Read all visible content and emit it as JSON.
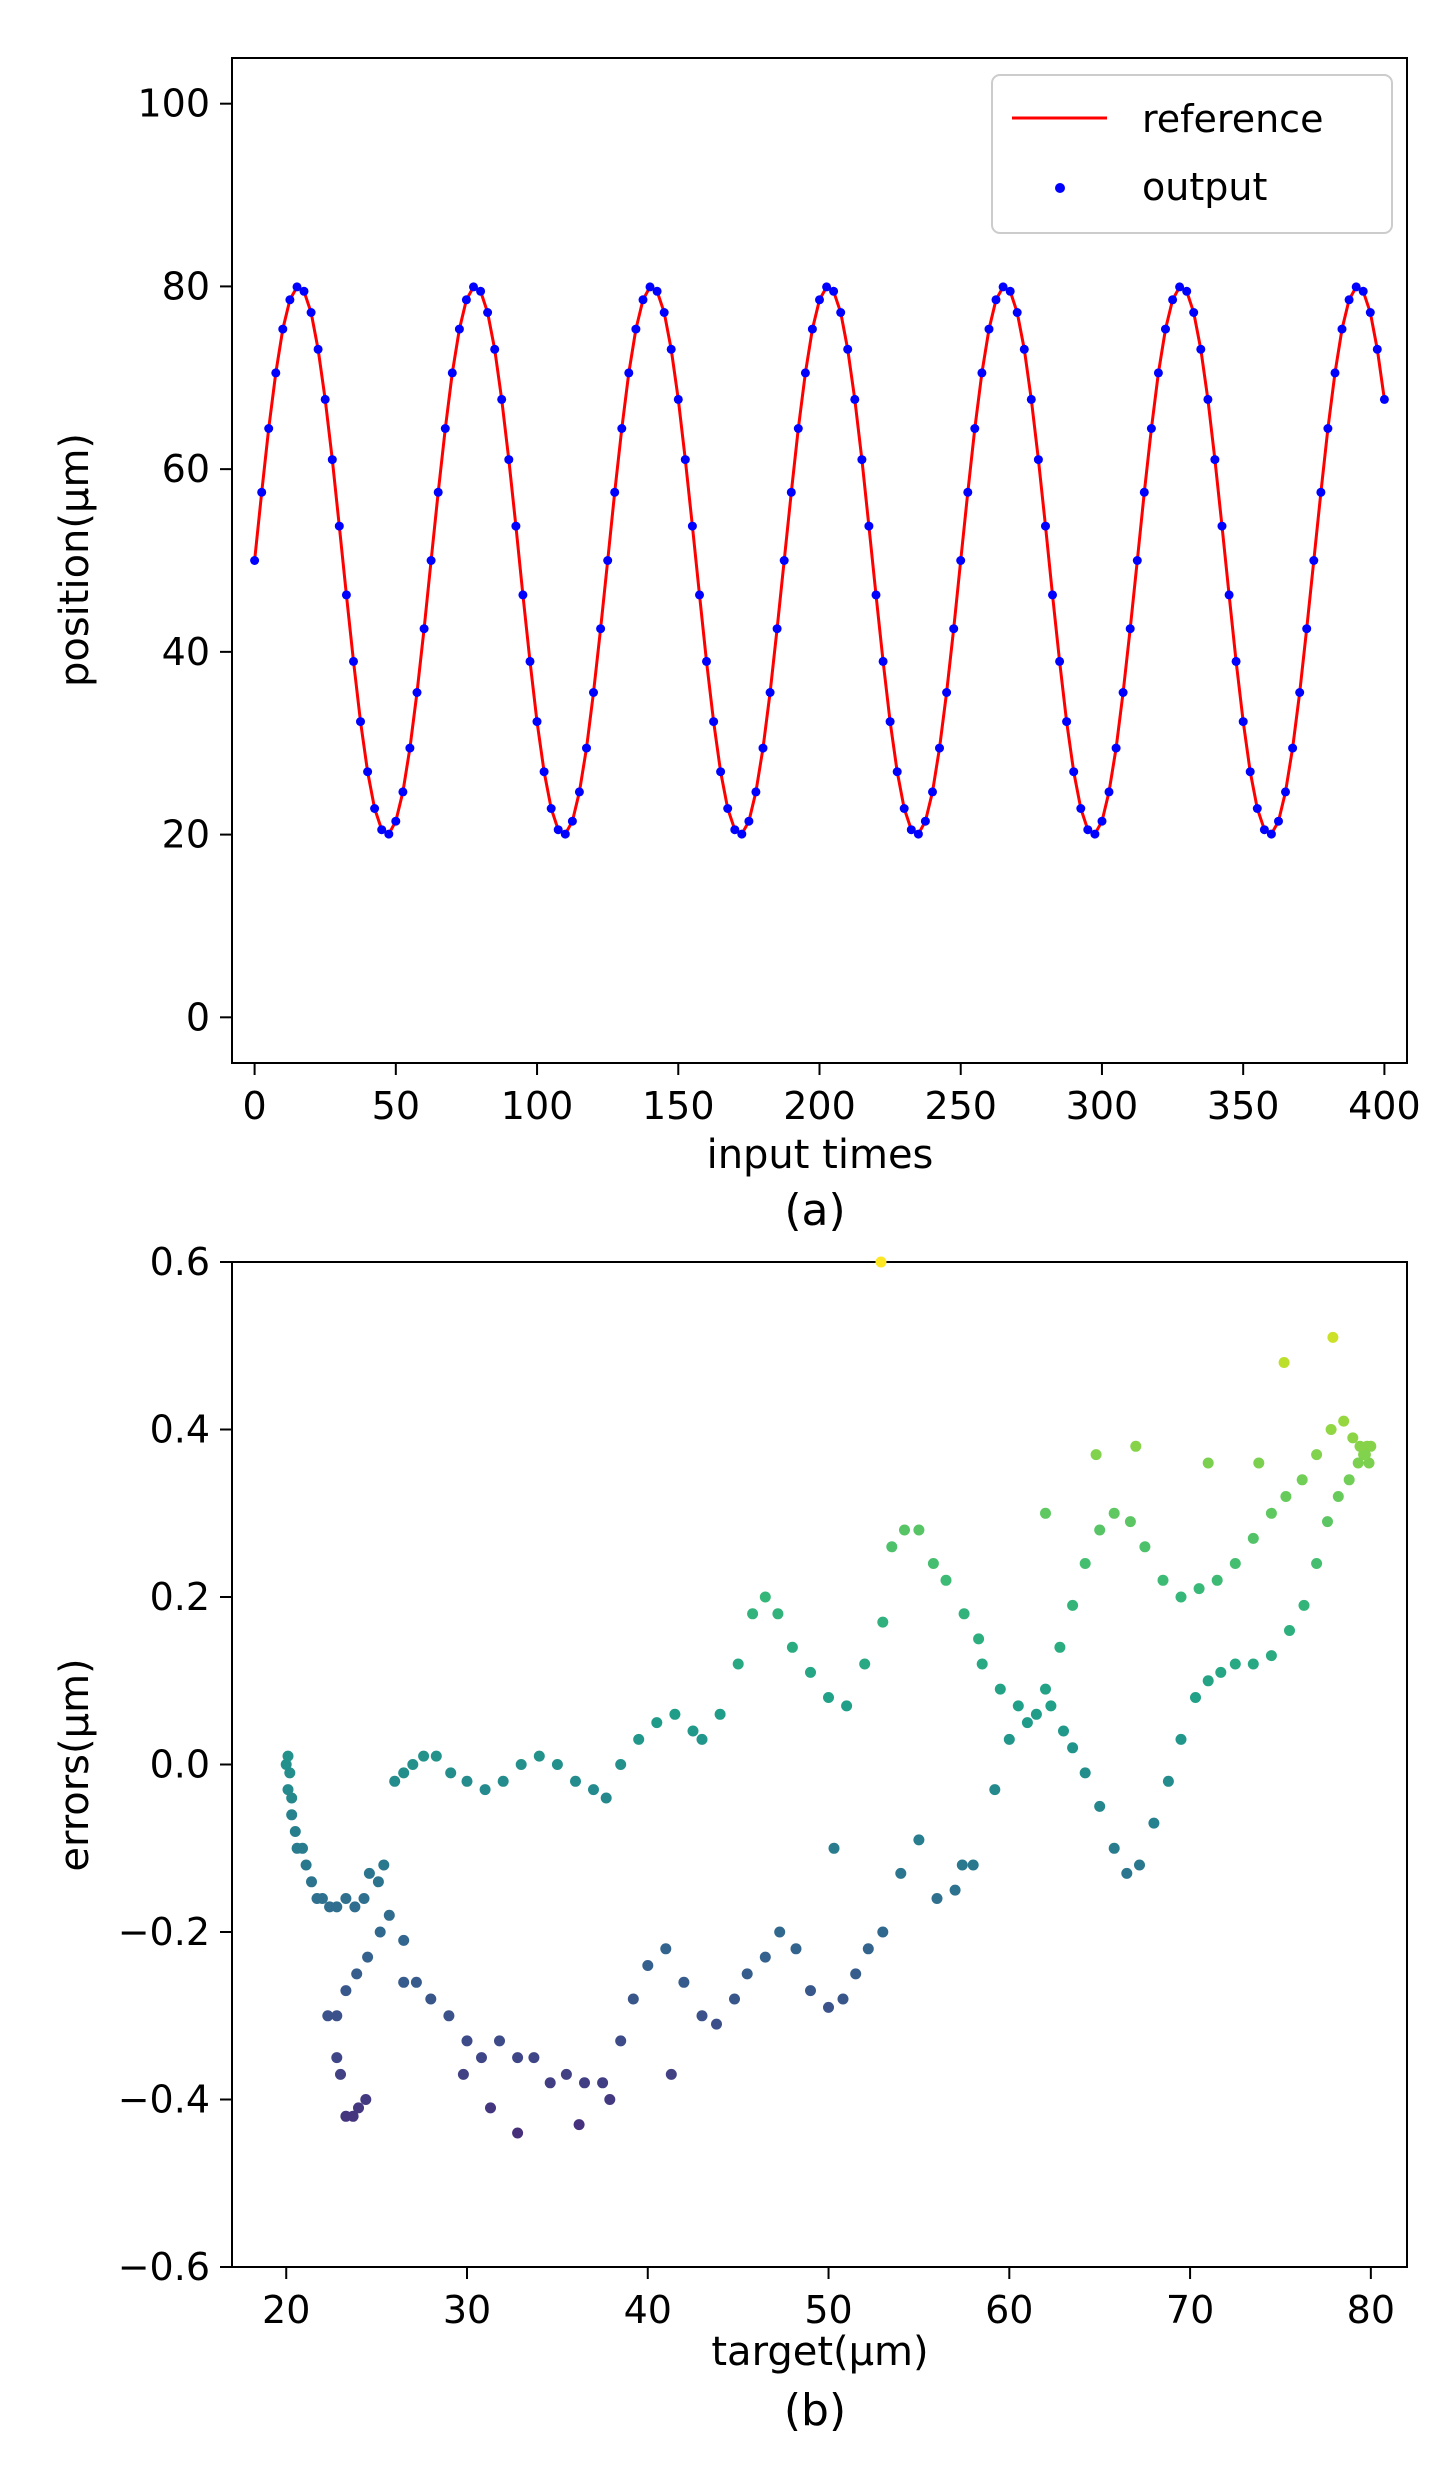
{
  "chart_data": [
    {
      "type": "line",
      "subplot_label": "(a)",
      "xlabel": "input times",
      "ylabel": "position(μm)",
      "xlim": [
        -8,
        408
      ],
      "ylim": [
        -5,
        105
      ],
      "xticks": [
        0,
        50,
        100,
        150,
        200,
        250,
        300,
        350,
        400
      ],
      "yticks": [
        0,
        20,
        40,
        60,
        80,
        100
      ],
      "legend": {
        "placement": "top-right",
        "entries": [
          "reference",
          "output"
        ]
      },
      "series": [
        {
          "name": "reference",
          "kind": "line",
          "color": "#ff0000",
          "function": "50 + 30*sin(2*pi*t/62.5)",
          "x_range": [
            0,
            400
          ],
          "step": 2.5
        },
        {
          "name": "output",
          "kind": "scatter",
          "color": "#0000ff",
          "function": "50 + 30*sin(2*pi*t/62.5)",
          "x_range": [
            0,
            400
          ],
          "step": 2.5
        }
      ]
    },
    {
      "type": "scatter",
      "subplot_label": "(b)",
      "xlabel": "target(μm)",
      "ylabel": "errors(μm)",
      "xlim": [
        17,
        82
      ],
      "ylim": [
        -0.6,
        0.6
      ],
      "xticks": [
        20,
        30,
        40,
        50,
        60,
        70,
        80
      ],
      "yticks": [
        -0.6,
        -0.4,
        -0.2,
        0.0,
        0.2,
        0.4,
        0.6
      ],
      "color_map": "viridis",
      "points": [
        [
          20.0,
          0.0
        ],
        [
          20.1,
          0.01
        ],
        [
          20.2,
          -0.01
        ],
        [
          20.1,
          -0.03
        ],
        [
          20.3,
          -0.04
        ],
        [
          20.3,
          -0.06
        ],
        [
          20.5,
          -0.08
        ],
        [
          20.6,
          -0.1
        ],
        [
          20.9,
          -0.1
        ],
        [
          21.1,
          -0.12
        ],
        [
          21.4,
          -0.14
        ],
        [
          21.7,
          -0.16
        ],
        [
          22.0,
          -0.16
        ],
        [
          22.4,
          -0.17
        ],
        [
          22.8,
          -0.17
        ],
        [
          23.3,
          -0.16
        ],
        [
          23.8,
          -0.17
        ],
        [
          24.3,
          -0.16
        ],
        [
          24.6,
          -0.13
        ],
        [
          25.1,
          -0.14
        ],
        [
          25.4,
          -0.12
        ],
        [
          26.0,
          -0.02
        ],
        [
          26.5,
          -0.01
        ],
        [
          27.0,
          0.0
        ],
        [
          27.6,
          0.01
        ],
        [
          28.3,
          0.01
        ],
        [
          29.1,
          -0.01
        ],
        [
          30.0,
          -0.02
        ],
        [
          31.0,
          -0.03
        ],
        [
          32.0,
          -0.02
        ],
        [
          33.0,
          0.0
        ],
        [
          34.0,
          0.01
        ],
        [
          35.0,
          0.0
        ],
        [
          36.0,
          -0.02
        ],
        [
          37.0,
          -0.03
        ],
        [
          37.7,
          -0.04
        ],
        [
          38.5,
          0.0
        ],
        [
          39.5,
          0.03
        ],
        [
          40.5,
          0.05
        ],
        [
          41.5,
          0.06
        ],
        [
          42.5,
          0.04
        ],
        [
          43.0,
          0.03
        ],
        [
          44.0,
          0.06
        ],
        [
          45.0,
          0.12
        ],
        [
          45.8,
          0.18
        ],
        [
          46.5,
          0.2
        ],
        [
          47.2,
          0.18
        ],
        [
          48.0,
          0.14
        ],
        [
          49.0,
          0.11
        ],
        [
          50.0,
          0.08
        ],
        [
          51.0,
          0.07
        ],
        [
          52.0,
          0.12
        ],
        [
          53.0,
          0.17
        ],
        [
          53.5,
          0.26
        ],
        [
          54.2,
          0.28
        ],
        [
          55.0,
          0.28
        ],
        [
          55.8,
          0.24
        ],
        [
          56.5,
          0.22
        ],
        [
          57.5,
          0.18
        ],
        [
          58.5,
          0.12
        ],
        [
          59.5,
          0.09
        ],
        [
          60.5,
          0.07
        ],
        [
          61.5,
          0.06
        ],
        [
          62.3,
          0.07
        ],
        [
          63.0,
          0.04
        ],
        [
          63.5,
          0.02
        ],
        [
          64.2,
          -0.01
        ],
        [
          65.0,
          -0.05
        ],
        [
          65.8,
          -0.1
        ],
        [
          66.5,
          -0.13
        ],
        [
          67.2,
          -0.12
        ],
        [
          68.0,
          -0.07
        ],
        [
          68.8,
          -0.02
        ],
        [
          69.5,
          0.03
        ],
        [
          70.3,
          0.08
        ],
        [
          71.0,
          0.1
        ],
        [
          71.7,
          0.11
        ],
        [
          72.5,
          0.12
        ],
        [
          73.5,
          0.12
        ],
        [
          74.5,
          0.13
        ],
        [
          75.5,
          0.16
        ],
        [
          76.3,
          0.19
        ],
        [
          77.0,
          0.24
        ],
        [
          77.6,
          0.29
        ],
        [
          78.2,
          0.32
        ],
        [
          78.8,
          0.34
        ],
        [
          79.3,
          0.36
        ],
        [
          79.6,
          0.37
        ],
        [
          79.8,
          0.38
        ],
        [
          80.0,
          0.38
        ],
        [
          79.9,
          0.36
        ],
        [
          79.7,
          0.37
        ],
        [
          79.4,
          0.38
        ],
        [
          79.0,
          0.39
        ],
        [
          78.5,
          0.41
        ],
        [
          77.8,
          0.4
        ],
        [
          77.0,
          0.37
        ],
        [
          76.2,
          0.34
        ],
        [
          75.3,
          0.32
        ],
        [
          74.5,
          0.3
        ],
        [
          73.5,
          0.27
        ],
        [
          72.5,
          0.24
        ],
        [
          71.5,
          0.22
        ],
        [
          70.5,
          0.21
        ],
        [
          69.5,
          0.2
        ],
        [
          68.5,
          0.22
        ],
        [
          67.5,
          0.26
        ],
        [
          66.7,
          0.29
        ],
        [
          65.8,
          0.3
        ],
        [
          65.0,
          0.28
        ],
        [
          64.2,
          0.24
        ],
        [
          63.5,
          0.19
        ],
        [
          62.8,
          0.14
        ],
        [
          62.0,
          0.09
        ],
        [
          61.0,
          0.05
        ],
        [
          60.0,
          0.03
        ],
        [
          59.2,
          -0.03
        ],
        [
          58.0,
          -0.12
        ],
        [
          57.0,
          -0.15
        ],
        [
          56.0,
          -0.16
        ],
        [
          55.0,
          -0.09
        ],
        [
          54.0,
          -0.13
        ],
        [
          53.0,
          -0.2
        ],
        [
          52.2,
          -0.22
        ],
        [
          51.5,
          -0.25
        ],
        [
          50.8,
          -0.28
        ],
        [
          50.0,
          -0.29
        ],
        [
          49.0,
          -0.27
        ],
        [
          48.2,
          -0.22
        ],
        [
          47.3,
          -0.2
        ],
        [
          46.5,
          -0.23
        ],
        [
          45.5,
          -0.25
        ],
        [
          44.8,
          -0.28
        ],
        [
          43.8,
          -0.31
        ],
        [
          43.0,
          -0.3
        ],
        [
          42.0,
          -0.26
        ],
        [
          41.0,
          -0.22
        ],
        [
          40.0,
          -0.24
        ],
        [
          39.2,
          -0.28
        ],
        [
          38.5,
          -0.33
        ],
        [
          37.5,
          -0.38
        ],
        [
          36.5,
          -0.38
        ],
        [
          35.5,
          -0.37
        ],
        [
          34.6,
          -0.38
        ],
        [
          33.7,
          -0.35
        ],
        [
          32.8,
          -0.35
        ],
        [
          31.8,
          -0.33
        ],
        [
          30.8,
          -0.35
        ],
        [
          30.0,
          -0.33
        ],
        [
          29.0,
          -0.3
        ],
        [
          28.0,
          -0.28
        ],
        [
          27.2,
          -0.26
        ],
        [
          26.5,
          -0.21
        ],
        [
          25.7,
          -0.18
        ],
        [
          25.2,
          -0.2
        ],
        [
          24.5,
          -0.23
        ],
        [
          23.9,
          -0.25
        ],
        [
          23.3,
          -0.27
        ],
        [
          22.8,
          -0.3
        ],
        [
          22.3,
          -0.3
        ],
        [
          22.8,
          -0.35
        ],
        [
          23.0,
          -0.37
        ],
        [
          23.3,
          -0.42
        ],
        [
          23.7,
          -0.42
        ],
        [
          24.0,
          -0.41
        ],
        [
          24.4,
          -0.4
        ],
        [
          75.2,
          0.48
        ],
        [
          77.9,
          0.51
        ],
        [
          64.8,
          0.37
        ],
        [
          67.0,
          0.38
        ],
        [
          52.9,
          0.6
        ],
        [
          37.9,
          -0.4
        ],
        [
          32.8,
          -0.44
        ],
        [
          31.3,
          -0.41
        ],
        [
          36.2,
          -0.43
        ],
        [
          50.3,
          -0.1
        ],
        [
          57.4,
          -0.12
        ],
        [
          58.3,
          0.15
        ],
        [
          62.0,
          0.3
        ],
        [
          71.0,
          0.36
        ],
        [
          73.8,
          0.36
        ],
        [
          41.3,
          -0.37
        ],
        [
          29.8,
          -0.37
        ],
        [
          26.5,
          -0.26
        ]
      ]
    }
  ]
}
